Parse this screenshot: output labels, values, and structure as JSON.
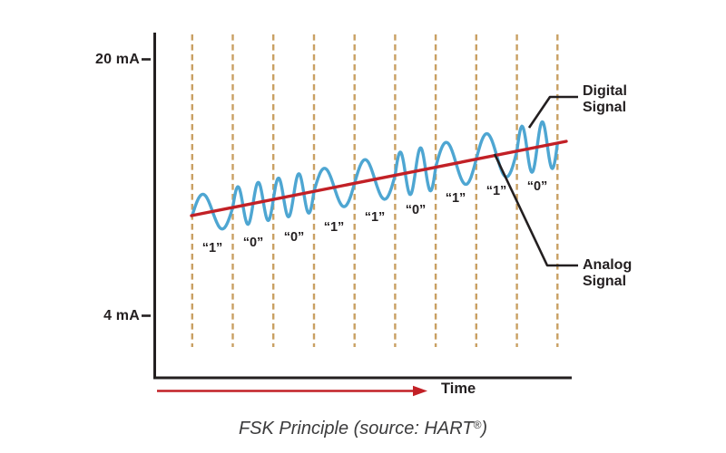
{
  "colors": {
    "background": "#FFFFFF",
    "axis": "#231F20",
    "text": "#231F20",
    "wave_blue": "#4EA6D2",
    "analog_red": "#C22026",
    "grid_tan": "#C9A063",
    "caption_gray": "#3B3B3C"
  },
  "y_axis": {
    "top_label": "20 mA",
    "bottom_label": "4 mA"
  },
  "x_axis": {
    "label": "Time"
  },
  "signal": {
    "bit_labels": [
      "“1”",
      "“0”",
      "“0”",
      "“1”",
      "“1”",
      "“0”",
      "“1”",
      "“1”",
      "“0”"
    ],
    "bit_values": [
      "1",
      "0",
      "0",
      "1",
      "1",
      "0",
      "1",
      "1",
      "0"
    ]
  },
  "annotations": {
    "digital_label": "Digital Signal",
    "analog_label": "Analog Signal"
  },
  "caption": {
    "pre": "FSK Principle (source: HART",
    "reg": "®",
    "post": ")"
  },
  "chart_data": {
    "type": "line",
    "title": "FSK Principle (source: HART®)",
    "xlabel": "Time",
    "y_tick_labels": [
      "20 mA",
      "4 mA"
    ],
    "grid": "10 vertical dashed bit-boundary lines forming 9 bit cells",
    "series": [
      {
        "name": "Digital Signal",
        "style": "blue sine wave superimposed on analog line",
        "bits": [
          "1",
          "0",
          "0",
          "1",
          "1",
          "0",
          "1",
          "1",
          "0"
        ],
        "cycles_per_bit": {
          "1": 1,
          "0": 2
        }
      },
      {
        "name": "Analog Signal",
        "style": "red straight line rising left-to-right between 4 mA and 20 mA"
      }
    ],
    "legend_position": "right side callout labels"
  }
}
